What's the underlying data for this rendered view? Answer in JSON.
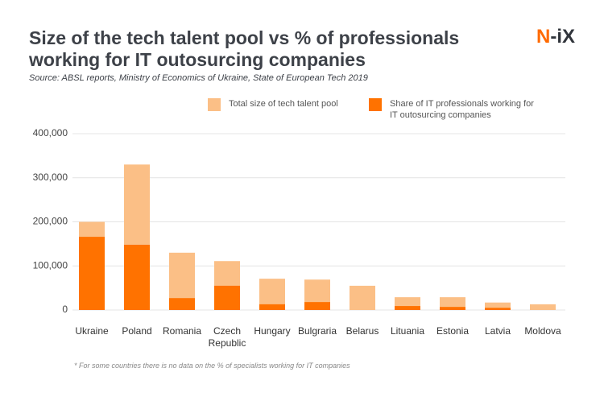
{
  "chart_data": {
    "type": "bar",
    "title": "Size of the tech talent pool vs % of professionals working for IT outosurcing companies",
    "subtitle": "Source: ABSL reports, Ministry of Economics of Ukraine, State of European Tech 2019",
    "logo": "N-iX",
    "footnote": "* For some countries there is no data on the % of specialists working for IT companies",
    "categories": [
      "Ukraine",
      "Poland",
      "Romania",
      "Czech Republic",
      "Hungary",
      "Bulgraria",
      "Belarus",
      "Lituania",
      "Estonia",
      "Latvia",
      "Moldova"
    ],
    "series": [
      {
        "name": "Total size of tech talent pool",
        "color": "#fbbf86",
        "values": [
          200000,
          330000,
          130000,
          111000,
          71000,
          69000,
          55000,
          29000,
          29000,
          17000,
          13000
        ]
      },
      {
        "name": "Share of IT professionals working for IT outosurcing companies",
        "color": "#ff7200",
        "values": [
          166000,
          148000,
          27000,
          55000,
          13000,
          18000,
          null,
          9000,
          7000,
          5000,
          null
        ]
      }
    ],
    "ylim": [
      0,
      400000
    ],
    "yticks": [
      {
        "value": 0,
        "label": "0"
      },
      {
        "value": 100000,
        "label": "100,000"
      },
      {
        "value": 200000,
        "label": "200,000"
      },
      {
        "value": 300000,
        "label": "300,000"
      },
      {
        "value": 400000,
        "label": "400,000"
      }
    ],
    "grid": true
  }
}
